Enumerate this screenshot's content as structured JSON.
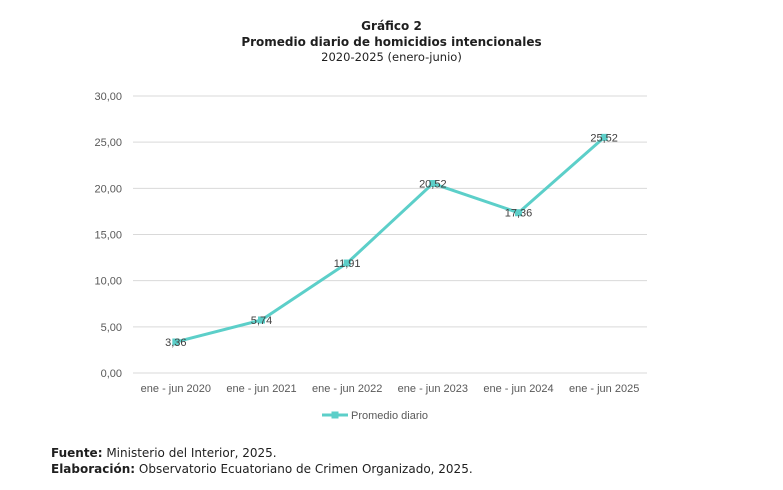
{
  "chart_data": {
    "type": "line",
    "title": "Gráfico 2",
    "subtitle": "Promedio diario de homicidios intencionales",
    "subtitle2": "2020-2025 (enero-junio)",
    "categories": [
      "ene - jun 2020",
      "ene - jun 2021",
      "ene - jun 2022",
      "ene - jun 2023",
      "ene - jun 2024",
      "ene - jun 2025"
    ],
    "series": [
      {
        "name": "Promedio diario",
        "values": [
          3.36,
          5.74,
          11.91,
          20.52,
          17.36,
          25.52
        ],
        "labels": [
          "3,36",
          "5,74",
          "11,91",
          "20,52",
          "17,36",
          "25,52"
        ],
        "color": "#5ccfc9"
      }
    ],
    "yticks": [
      "0,00",
      "5,00",
      "10,00",
      "15,00",
      "20,00",
      "25,00",
      "30,00"
    ],
    "ylim": [
      0,
      30
    ],
    "xlabel": "",
    "ylabel": "",
    "grid": true,
    "legend": "bottom"
  },
  "footer": {
    "source_label": "Fuente:",
    "source_text": " Ministerio del Interior, 2025.",
    "credit_label": "Elaboración:",
    "credit_text": " Observatorio Ecuatoriano de Crimen Organizado, 2025."
  }
}
